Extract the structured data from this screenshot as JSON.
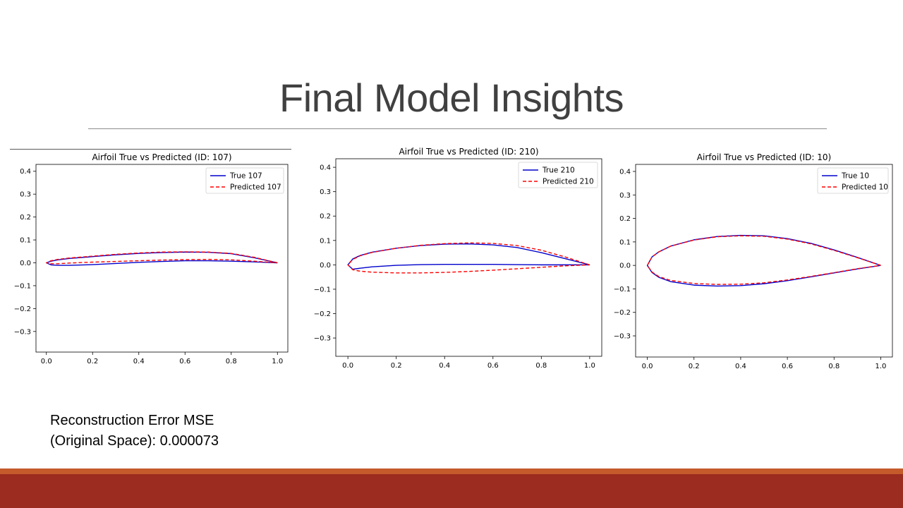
{
  "slide": {
    "title": "Final Model Insights",
    "mse_line1": "Reconstruction Error MSE",
    "mse_line2": "(Original Space): 0.000073",
    "colors": {
      "footer_top": "#c55a2b",
      "footer_band": "#9b2c1f",
      "true_line": "#0000cc",
      "pred_line": "#ff0000"
    }
  },
  "chart_data": [
    {
      "type": "line",
      "title": "Airfoil True vs Predicted (ID: 107)",
      "xlim": [
        -0.045,
        1.045
      ],
      "ylim": [
        -0.39,
        0.43
      ],
      "xticks": [
        0.0,
        0.2,
        0.4,
        0.6,
        0.8,
        1.0
      ],
      "yticks": [
        -0.3,
        -0.2,
        -0.1,
        0.0,
        0.1,
        0.2,
        0.3,
        0.4
      ],
      "legend_position": "upper right",
      "series": [
        {
          "name": "True 107",
          "style": "solid",
          "color": "#0000cc",
          "x": [
            1.0,
            0.9,
            0.8,
            0.7,
            0.6,
            0.5,
            0.4,
            0.3,
            0.2,
            0.1,
            0.05,
            0.02,
            0.0,
            0.02,
            0.05,
            0.1,
            0.2,
            0.3,
            0.4,
            0.5,
            0.6,
            0.7,
            0.8,
            0.9,
            1.0
          ],
          "y": [
            0.0,
            0.022,
            0.04,
            0.046,
            0.047,
            0.045,
            0.041,
            0.035,
            0.027,
            0.019,
            0.013,
            0.007,
            0.0,
            -0.009,
            -0.011,
            -0.011,
            -0.008,
            -0.003,
            0.002,
            0.006,
            0.009,
            0.009,
            0.007,
            0.004,
            0.0
          ]
        },
        {
          "name": "Predicted 107",
          "style": "dashed",
          "color": "#ff0000",
          "x": [
            1.0,
            0.9,
            0.8,
            0.7,
            0.6,
            0.5,
            0.4,
            0.3,
            0.2,
            0.1,
            0.05,
            0.02,
            0.0,
            0.02,
            0.05,
            0.1,
            0.2,
            0.3,
            0.4,
            0.5,
            0.6,
            0.7,
            0.8,
            0.9,
            1.0
          ],
          "y": [
            0.0,
            0.024,
            0.041,
            0.047,
            0.048,
            0.047,
            0.043,
            0.037,
            0.029,
            0.021,
            0.015,
            0.009,
            0.0,
            -0.004,
            -0.004,
            -0.001,
            0.003,
            0.006,
            0.009,
            0.012,
            0.014,
            0.015,
            0.013,
            0.007,
            0.0
          ]
        }
      ]
    },
    {
      "type": "line",
      "title": "Airfoil True vs Predicted (ID: 210)",
      "xlim": [
        -0.05,
        1.05
      ],
      "ylim": [
        -0.375,
        0.435
      ],
      "xticks": [
        0.0,
        0.2,
        0.4,
        0.6,
        0.8,
        1.0
      ],
      "yticks": [
        -0.3,
        -0.2,
        -0.1,
        0.0,
        0.1,
        0.2,
        0.3,
        0.4
      ],
      "legend_position": "upper right",
      "series": [
        {
          "name": "True 210",
          "style": "solid",
          "color": "#0000cc",
          "x": [
            1.0,
            0.9,
            0.8,
            0.7,
            0.6,
            0.5,
            0.4,
            0.3,
            0.2,
            0.1,
            0.05,
            0.02,
            0.0,
            0.02,
            0.05,
            0.1,
            0.2,
            0.3,
            0.4,
            0.5,
            0.6,
            0.7,
            0.8,
            0.9,
            1.0
          ],
          "y": [
            0.0,
            0.025,
            0.05,
            0.071,
            0.082,
            0.086,
            0.085,
            0.079,
            0.068,
            0.052,
            0.038,
            0.024,
            0.0,
            -0.018,
            -0.014,
            -0.008,
            -0.002,
            0.001,
            0.002,
            0.002,
            0.002,
            0.001,
            0.0,
            0.0,
            0.0
          ]
        },
        {
          "name": "Predicted 210",
          "style": "dashed",
          "color": "#ff0000",
          "x": [
            1.0,
            0.9,
            0.8,
            0.7,
            0.6,
            0.5,
            0.4,
            0.3,
            0.2,
            0.1,
            0.05,
            0.02,
            0.0,
            0.02,
            0.05,
            0.1,
            0.2,
            0.3,
            0.4,
            0.5,
            0.6,
            0.7,
            0.8,
            0.9,
            1.0
          ],
          "y": [
            0.0,
            0.032,
            0.06,
            0.079,
            0.088,
            0.09,
            0.087,
            0.08,
            0.068,
            0.051,
            0.037,
            0.022,
            0.0,
            -0.02,
            -0.026,
            -0.03,
            -0.033,
            -0.033,
            -0.031,
            -0.027,
            -0.022,
            -0.016,
            -0.01,
            -0.004,
            0.0
          ]
        }
      ]
    },
    {
      "type": "line",
      "title": "Airfoil True vs Predicted (ID: 10)",
      "xlim": [
        -0.05,
        1.05
      ],
      "ylim": [
        -0.39,
        0.43
      ],
      "xticks": [
        0.0,
        0.2,
        0.4,
        0.6,
        0.8,
        1.0
      ],
      "yticks": [
        -0.3,
        -0.2,
        -0.1,
        0.0,
        0.1,
        0.2,
        0.3,
        0.4
      ],
      "legend_position": "upper right",
      "series": [
        {
          "name": "True 10",
          "style": "solid",
          "color": "#0000cc",
          "x": [
            1.0,
            0.9,
            0.8,
            0.7,
            0.6,
            0.5,
            0.4,
            0.3,
            0.2,
            0.1,
            0.05,
            0.02,
            0.0,
            0.02,
            0.05,
            0.1,
            0.2,
            0.3,
            0.4,
            0.5,
            0.6,
            0.7,
            0.8,
            0.9,
            1.0
          ],
          "y": [
            0.0,
            0.034,
            0.066,
            0.094,
            0.114,
            0.126,
            0.128,
            0.123,
            0.109,
            0.082,
            0.058,
            0.036,
            0.0,
            -0.03,
            -0.051,
            -0.069,
            -0.084,
            -0.088,
            -0.086,
            -0.078,
            -0.065,
            -0.049,
            -0.032,
            -0.015,
            0.0
          ]
        },
        {
          "name": "Predicted 10",
          "style": "dashed",
          "color": "#ff0000",
          "x": [
            1.0,
            0.9,
            0.8,
            0.7,
            0.6,
            0.5,
            0.4,
            0.3,
            0.2,
            0.1,
            0.05,
            0.02,
            0.0,
            0.02,
            0.05,
            0.1,
            0.2,
            0.3,
            0.4,
            0.5,
            0.6,
            0.7,
            0.8,
            0.9,
            1.0
          ],
          "y": [
            0.0,
            0.033,
            0.064,
            0.092,
            0.112,
            0.124,
            0.126,
            0.122,
            0.108,
            0.082,
            0.058,
            0.036,
            0.0,
            -0.028,
            -0.048,
            -0.064,
            -0.077,
            -0.081,
            -0.08,
            -0.074,
            -0.062,
            -0.047,
            -0.031,
            -0.014,
            0.0
          ]
        }
      ]
    }
  ]
}
